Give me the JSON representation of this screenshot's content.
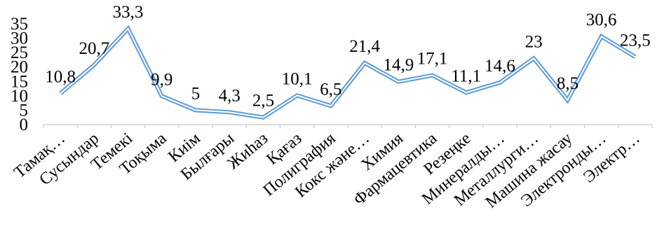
{
  "chart_data": {
    "type": "line",
    "title": "",
    "xlabel": "",
    "ylabel": "",
    "ylim": [
      0,
      35
    ],
    "yticks": [
      "0",
      "5",
      "10",
      "15",
      "20",
      "25",
      "30",
      "35"
    ],
    "grid": false,
    "legend": "none",
    "line_style": "double",
    "colors": {
      "line_outer": "#5b9bd5",
      "line_inner": "#ffffff",
      "axis": "#bfbfbf"
    },
    "categories": [
      "Тамақ…",
      "Сусындар",
      "Темекі",
      "Тоқыма",
      "Киім",
      "Былғары",
      "Жиһаз",
      "Қағаз",
      "Полиграфия",
      "Кокс және…",
      "Химия",
      "Фармацевтика",
      "Резеңке",
      "Минералды…",
      "Металлурги…",
      "Машина жасау",
      "Электронды…",
      "Электр…"
    ],
    "values": [
      10.8,
      20.7,
      33.3,
      9.9,
      5,
      4.3,
      2.5,
      10.1,
      6.5,
      21.4,
      14.9,
      17.1,
      11.1,
      14.6,
      23,
      8.5,
      30.6,
      23.5
    ],
    "data_labels": [
      "10,8",
      "20,7",
      "33,3",
      "9,9",
      "5",
      "4,3",
      "2,5",
      "10,1",
      "6,5",
      "21,4",
      "14,9",
      "17,1",
      "11,1",
      "14,6",
      "23",
      "8,5",
      "30,6",
      "23,5"
    ]
  }
}
